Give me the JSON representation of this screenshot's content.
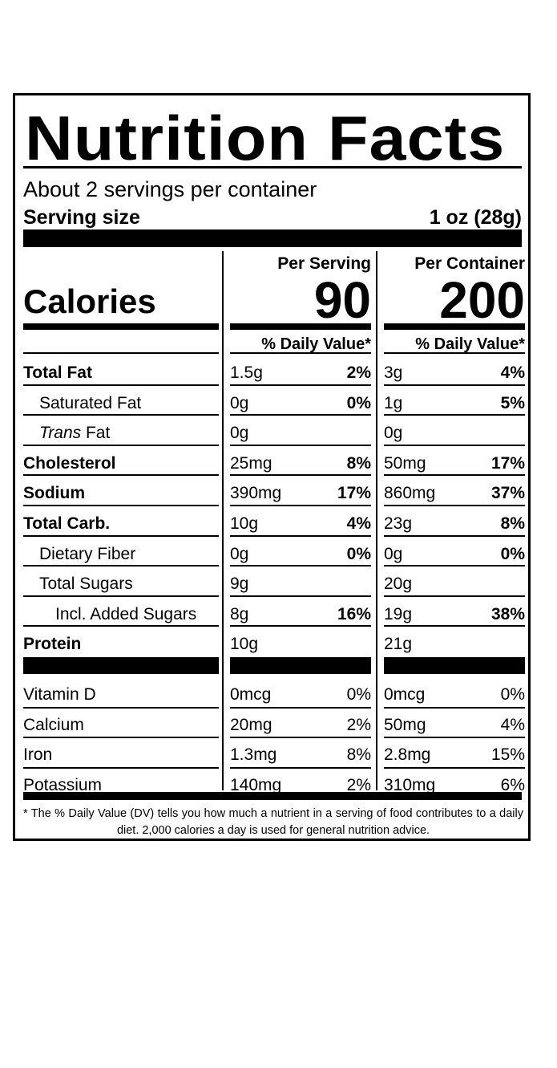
{
  "title": "Nutrition Facts",
  "servings_per_container": "About 2 servings per container",
  "serving_size": {
    "label": "Serving size",
    "value": "1 oz (28g)"
  },
  "calories": {
    "label": "Calories",
    "per_serving": "90",
    "per_container": "200"
  },
  "columns": {
    "per_serving_label": "Per Serving",
    "per_container_label": "Per Container",
    "daily_value_label": "% Daily Value*"
  },
  "nutrients": [
    {
      "name": "Total Fat",
      "serving_amount": "1.5g",
      "serving_dv": "2%",
      "container_amount": "3g",
      "container_dv": "4%"
    },
    {
      "name": "Saturated Fat",
      "serving_amount": "0g",
      "serving_dv": "0%",
      "container_amount": "1g",
      "container_dv": "5%"
    },
    {
      "name_italic": "Trans",
      "name": " Fat",
      "serving_amount": "0g",
      "serving_dv": "",
      "container_amount": "0g",
      "container_dv": ""
    },
    {
      "name": "Cholesterol",
      "serving_amount": "25mg",
      "serving_dv": "8%",
      "container_amount": "50mg",
      "container_dv": "17%"
    },
    {
      "name": "Sodium",
      "serving_amount": "390mg",
      "serving_dv": "17%",
      "container_amount": "860mg",
      "container_dv": "37%"
    },
    {
      "name": "Total Carb.",
      "serving_amount": "10g",
      "serving_dv": "4%",
      "container_amount": "23g",
      "container_dv": "8%"
    },
    {
      "name": "Dietary Fiber",
      "serving_amount": "0g",
      "serving_dv": "0%",
      "container_amount": "0g",
      "container_dv": "0%"
    },
    {
      "name": "Total Sugars",
      "serving_amount": "9g",
      "serving_dv": "",
      "container_amount": "20g",
      "container_dv": ""
    },
    {
      "name": "Incl. Added Sugars",
      "serving_amount": "8g",
      "serving_dv": "16%",
      "container_amount": "19g",
      "container_dv": "38%"
    },
    {
      "name": "Protein",
      "serving_amount": "10g",
      "serving_dv": "",
      "container_amount": "21g",
      "container_dv": ""
    }
  ],
  "vitamins": [
    {
      "name": "Vitamin D",
      "serving_amount": "0mcg",
      "serving_dv": "0%",
      "container_amount": "0mcg",
      "container_dv": "0%"
    },
    {
      "name": "Calcium",
      "serving_amount": "20mg",
      "serving_dv": "2%",
      "container_amount": "50mg",
      "container_dv": "4%"
    },
    {
      "name": "Iron",
      "serving_amount": "1.3mg",
      "serving_dv": "8%",
      "container_amount": "2.8mg",
      "container_dv": "15%"
    },
    {
      "name": "Potassium",
      "serving_amount": "140mg",
      "serving_dv": "2%",
      "container_amount": "310mg",
      "container_dv": "6%"
    }
  ],
  "footnote": "* The % Daily Value (DV) tells you how much a nutrient in a serving of food contributes to a daily diet. 2,000 calories a day is used for general nutrition advice."
}
